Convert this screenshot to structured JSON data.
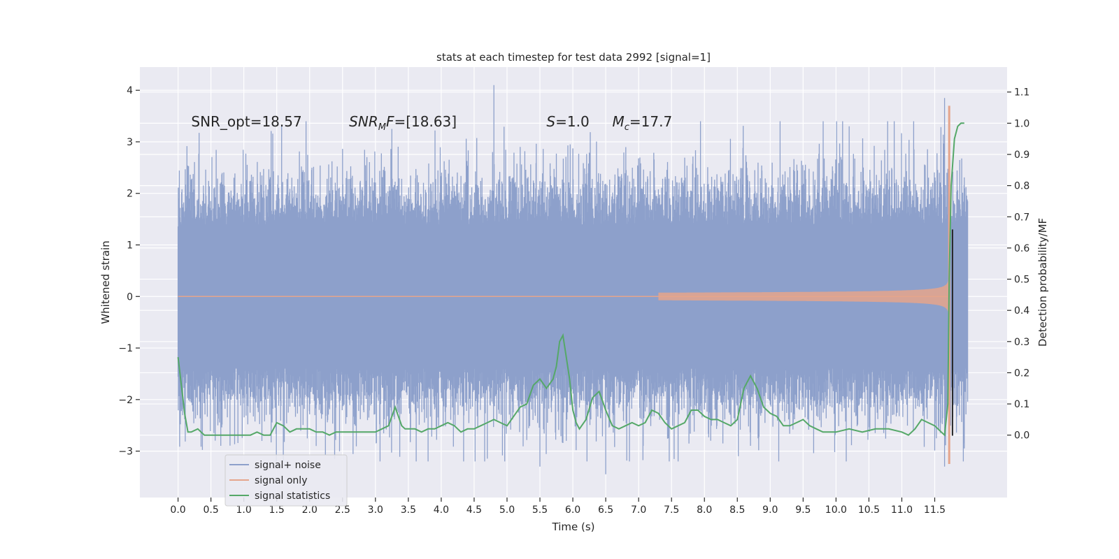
{
  "chart_data": {
    "type": "line",
    "title": "stats at each timestep for test data 2992 [signal=1]",
    "xlabel": "Time (s)",
    "ylabel_left": "Whitened strain",
    "ylabel_right": "Detection probability/MF",
    "xlim": [
      -0.58,
      12.6
    ],
    "ylim_left": [
      -3.9,
      4.45
    ],
    "ylim_right": [
      -0.2,
      1.18
    ],
    "x_ticks": [
      "0.0",
      "0.5",
      "1.0",
      "1.5",
      "2.0",
      "2.5",
      "3.0",
      "3.5",
      "4.0",
      "4.5",
      "5.0",
      "5.5",
      "6.0",
      "6.5",
      "7.0",
      "7.5",
      "8.0",
      "8.5",
      "9.0",
      "9.5",
      "10.0",
      "10.5",
      "11.0",
      "11.5"
    ],
    "y_ticks_left": [
      "−3",
      "−2",
      "−1",
      "0",
      "1",
      "2",
      "3",
      "4"
    ],
    "y_ticks_right": [
      "0.0",
      "0.1",
      "0.2",
      "0.3",
      "0.4",
      "0.5",
      "0.6",
      "0.7",
      "0.8",
      "0.9",
      "1.0",
      "1.1"
    ],
    "annotations": [
      {
        "text": "SNR_opt=18.57",
        "x": 0.2,
        "y": 3.3
      },
      {
        "text": "SNR_MF=[18.63]",
        "base": "SNR",
        "sub": "M",
        "rest": "F=[18.63]",
        "x": 2.6,
        "y": 3.3
      },
      {
        "text": "S=1.0",
        "base": "S",
        "rest": "=1.0",
        "x": 5.6,
        "y": 3.3
      },
      {
        "text": "M_c=17.7",
        "base": "M",
        "sub": "c",
        "rest": "=17.7",
        "x": 6.6,
        "y": 3.3
      }
    ],
    "legend": [
      "signal+ noise",
      "signal only",
      "signal statistics"
    ],
    "legend_position": "lower-left",
    "series": [
      {
        "name": "signal+ noise",
        "color": "#8da0cb",
        "axis": "left",
        "x_range": [
          0.0,
          12.0
        ],
        "envelope": {
          "typical_amplitude": 1.4,
          "peak_high": 4.1,
          "peak_low": -3.45
        },
        "peaks": [
          [
            4.8,
            4.1
          ],
          [
            11.65,
            3.85
          ],
          [
            3.25,
            3.25
          ],
          [
            10.2,
            3.3
          ],
          [
            6.5,
            -3.45
          ],
          [
            5.5,
            -3.3
          ],
          [
            11.65,
            -3.3
          ]
        ]
      },
      {
        "name": "signal only",
        "color": "#e5a58c",
        "axis": "left",
        "x_range": [
          0.0,
          12.0
        ],
        "merger_time": 11.72,
        "peak_high": 3.7,
        "peak_low": -3.25
      },
      {
        "name": "signal statistics",
        "color": "#55a868",
        "axis": "right",
        "x": [
          0.0,
          0.05,
          0.1,
          0.15,
          0.2,
          0.3,
          0.4,
          0.5,
          0.6,
          0.7,
          0.8,
          0.9,
          1.0,
          1.1,
          1.2,
          1.3,
          1.4,
          1.5,
          1.6,
          1.7,
          1.8,
          1.9,
          2.0,
          2.1,
          2.2,
          2.3,
          2.4,
          2.5,
          2.6,
          2.7,
          2.8,
          2.9,
          3.0,
          3.1,
          3.2,
          3.3,
          3.35,
          3.4,
          3.45,
          3.5,
          3.6,
          3.7,
          3.8,
          3.9,
          4.0,
          4.1,
          4.2,
          4.3,
          4.4,
          4.5,
          4.6,
          4.7,
          4.8,
          4.9,
          5.0,
          5.1,
          5.2,
          5.3,
          5.4,
          5.5,
          5.6,
          5.7,
          5.75,
          5.8,
          5.85,
          5.9,
          5.95,
          6.0,
          6.05,
          6.1,
          6.2,
          6.3,
          6.4,
          6.5,
          6.6,
          6.7,
          6.8,
          6.9,
          7.0,
          7.1,
          7.2,
          7.3,
          7.4,
          7.5,
          7.6,
          7.7,
          7.8,
          7.9,
          8.0,
          8.1,
          8.2,
          8.3,
          8.4,
          8.5,
          8.6,
          8.7,
          8.8,
          8.9,
          9.0,
          9.1,
          9.2,
          9.3,
          9.4,
          9.5,
          9.6,
          9.7,
          9.8,
          9.9,
          10.0,
          10.2,
          10.4,
          10.6,
          10.8,
          11.0,
          11.1,
          11.2,
          11.3,
          11.4,
          11.5,
          11.6,
          11.65,
          11.7,
          11.72,
          11.75,
          11.8,
          11.85,
          11.9,
          11.95
        ],
        "values": [
          0.25,
          0.16,
          0.07,
          0.01,
          0.01,
          0.02,
          0.0,
          0.0,
          0.0,
          0.0,
          0.0,
          0.0,
          0.0,
          0.0,
          0.01,
          0.0,
          0.0,
          0.04,
          0.03,
          0.01,
          0.02,
          0.02,
          0.02,
          0.01,
          0.01,
          0.0,
          0.01,
          0.01,
          0.01,
          0.01,
          0.01,
          0.01,
          0.01,
          0.02,
          0.03,
          0.09,
          0.06,
          0.03,
          0.02,
          0.02,
          0.02,
          0.01,
          0.02,
          0.02,
          0.03,
          0.04,
          0.03,
          0.01,
          0.02,
          0.02,
          0.03,
          0.04,
          0.05,
          0.04,
          0.03,
          0.06,
          0.09,
          0.1,
          0.16,
          0.18,
          0.15,
          0.18,
          0.22,
          0.3,
          0.32,
          0.25,
          0.18,
          0.08,
          0.04,
          0.02,
          0.05,
          0.12,
          0.14,
          0.08,
          0.03,
          0.02,
          0.03,
          0.04,
          0.03,
          0.04,
          0.08,
          0.07,
          0.04,
          0.02,
          0.03,
          0.04,
          0.08,
          0.08,
          0.06,
          0.05,
          0.05,
          0.04,
          0.03,
          0.05,
          0.15,
          0.19,
          0.15,
          0.09,
          0.07,
          0.06,
          0.03,
          0.03,
          0.04,
          0.05,
          0.03,
          0.02,
          0.01,
          0.01,
          0.01,
          0.02,
          0.01,
          0.02,
          0.02,
          0.01,
          0.0,
          0.02,
          0.05,
          0.04,
          0.03,
          0.01,
          0.0,
          0.1,
          0.5,
          0.8,
          0.95,
          0.99,
          1.0,
          1.0
        ]
      }
    ],
    "colors": {
      "background": "#eaeaf2",
      "grid": "#ffffff",
      "text": "#262626",
      "merger_line": "#262626"
    }
  }
}
